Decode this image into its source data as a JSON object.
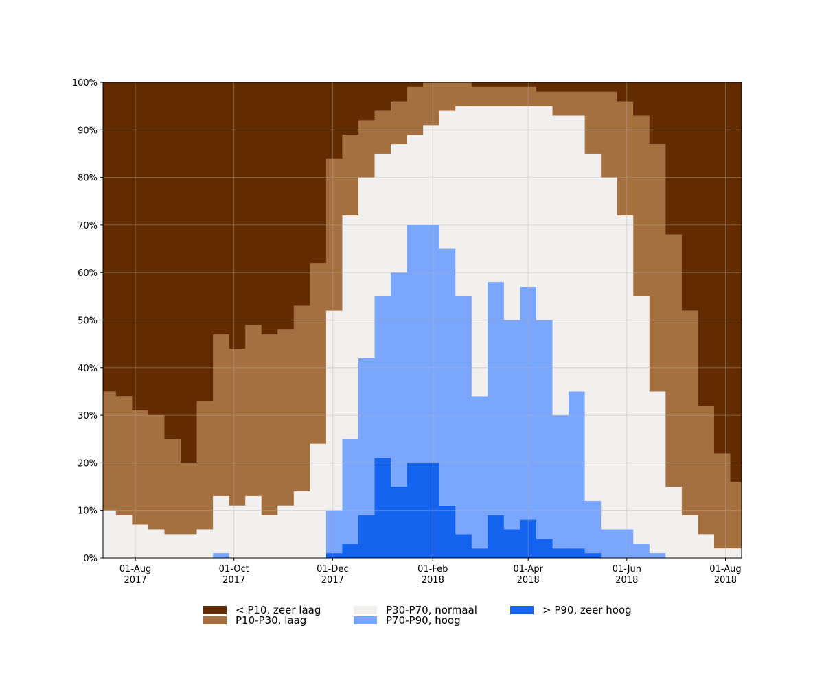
{
  "chart_data": {
    "type": "stacked-step-area",
    "x": [
      "2017-07-15",
      "2017-07-25",
      "2017-08-04",
      "2017-08-14",
      "2017-08-24",
      "2017-09-03",
      "2017-09-13",
      "2017-09-23",
      "2017-10-03",
      "2017-10-13",
      "2017-10-23",
      "2017-11-02",
      "2017-11-12",
      "2017-11-22",
      "2017-12-02",
      "2017-12-12",
      "2017-12-22",
      "2018-01-01",
      "2018-01-11",
      "2018-01-21",
      "2018-01-31",
      "2018-02-10",
      "2018-02-20",
      "2018-03-02",
      "2018-03-12",
      "2018-03-22",
      "2018-04-01",
      "2018-04-11",
      "2018-04-21",
      "2018-05-01",
      "2018-05-11",
      "2018-05-21",
      "2018-05-31",
      "2018-06-10",
      "2018-06-20",
      "2018-06-30",
      "2018-07-10",
      "2018-07-20",
      "2018-07-30",
      "2018-08-09"
    ],
    "series": [
      {
        "name": "< P10, zeer laag",
        "color": "#622c00",
        "values": [
          65,
          66,
          69,
          70,
          75,
          80,
          67,
          53,
          56,
          51,
          53,
          52,
          47,
          38,
          16,
          11,
          8,
          6,
          4,
          1,
          0,
          0,
          0,
          1,
          1,
          1,
          1,
          2,
          2,
          2,
          2,
          2,
          4,
          7,
          13,
          32,
          48,
          68,
          78,
          84
        ]
      },
      {
        "name": "P10-P30, laag",
        "color": "#a47040",
        "values": [
          25,
          25,
          24,
          24,
          20,
          15,
          27,
          34,
          33,
          36,
          38,
          37,
          39,
          38,
          32,
          17,
          12,
          9,
          9,
          10,
          9,
          6,
          5,
          4,
          4,
          4,
          4,
          3,
          5,
          5,
          13,
          18,
          24,
          38,
          52,
          53,
          43,
          27,
          20,
          14
        ]
      },
      {
        "name": "P30-P70, normaal",
        "color": "#f2f0ef",
        "values": [
          10,
          9,
          7,
          6,
          5,
          5,
          6,
          12,
          11,
          13,
          9,
          11,
          14,
          24,
          42,
          47,
          38,
          30,
          27,
          19,
          21,
          29,
          40,
          61,
          37,
          45,
          38,
          45,
          63,
          58,
          73,
          74,
          66,
          52,
          34,
          15,
          9,
          5,
          2,
          2
        ]
      },
      {
        "name": "P70-P90, hoog",
        "color": "#7aa6fd",
        "values": [
          0,
          0,
          0,
          0,
          0,
          0,
          0,
          1,
          0,
          0,
          0,
          0,
          0,
          0,
          9,
          22,
          33,
          34,
          45,
          50,
          50,
          54,
          50,
          32,
          49,
          44,
          49,
          46,
          28,
          33,
          11,
          6,
          6,
          3,
          1,
          0,
          0,
          0,
          0,
          0
        ]
      },
      {
        "name": "> P90, zeer hoog",
        "color": "#1464ef",
        "values": [
          0,
          0,
          0,
          0,
          0,
          0,
          0,
          0,
          0,
          0,
          0,
          0,
          0,
          0,
          1,
          3,
          9,
          21,
          15,
          20,
          20,
          11,
          5,
          2,
          9,
          6,
          8,
          4,
          2,
          2,
          1,
          0,
          0,
          0,
          0,
          0,
          0,
          0,
          0,
          0
        ]
      }
    ],
    "xlim": [
      "2017-07-12",
      "2018-08-11"
    ],
    "xticks": [
      {
        "value": "2017-08-01",
        "label": "01-Aug\n2017"
      },
      {
        "value": "2017-10-01",
        "label": "01-Oct\n2017"
      },
      {
        "value": "2017-12-01",
        "label": "01-Dec\n2017"
      },
      {
        "value": "2018-02-01",
        "label": "01-Feb\n2018"
      },
      {
        "value": "2018-04-01",
        "label": "01-Apr\n2018"
      },
      {
        "value": "2018-06-01",
        "label": "01-Jun\n2018"
      },
      {
        "value": "2018-08-01",
        "label": "01-Aug\n2018"
      }
    ],
    "ylim": [
      0,
      100
    ],
    "yticks": [
      {
        "value": 0,
        "label": "0%"
      },
      {
        "value": 10,
        "label": "10%"
      },
      {
        "value": 20,
        "label": "20%"
      },
      {
        "value": 30,
        "label": "30%"
      },
      {
        "value": 40,
        "label": "40%"
      },
      {
        "value": 50,
        "label": "50%"
      },
      {
        "value": 60,
        "label": "60%"
      },
      {
        "value": 70,
        "label": "70%"
      },
      {
        "value": 80,
        "label": "80%"
      },
      {
        "value": 90,
        "label": "90%"
      },
      {
        "value": 100,
        "label": "100%"
      }
    ],
    "grid": true
  }
}
